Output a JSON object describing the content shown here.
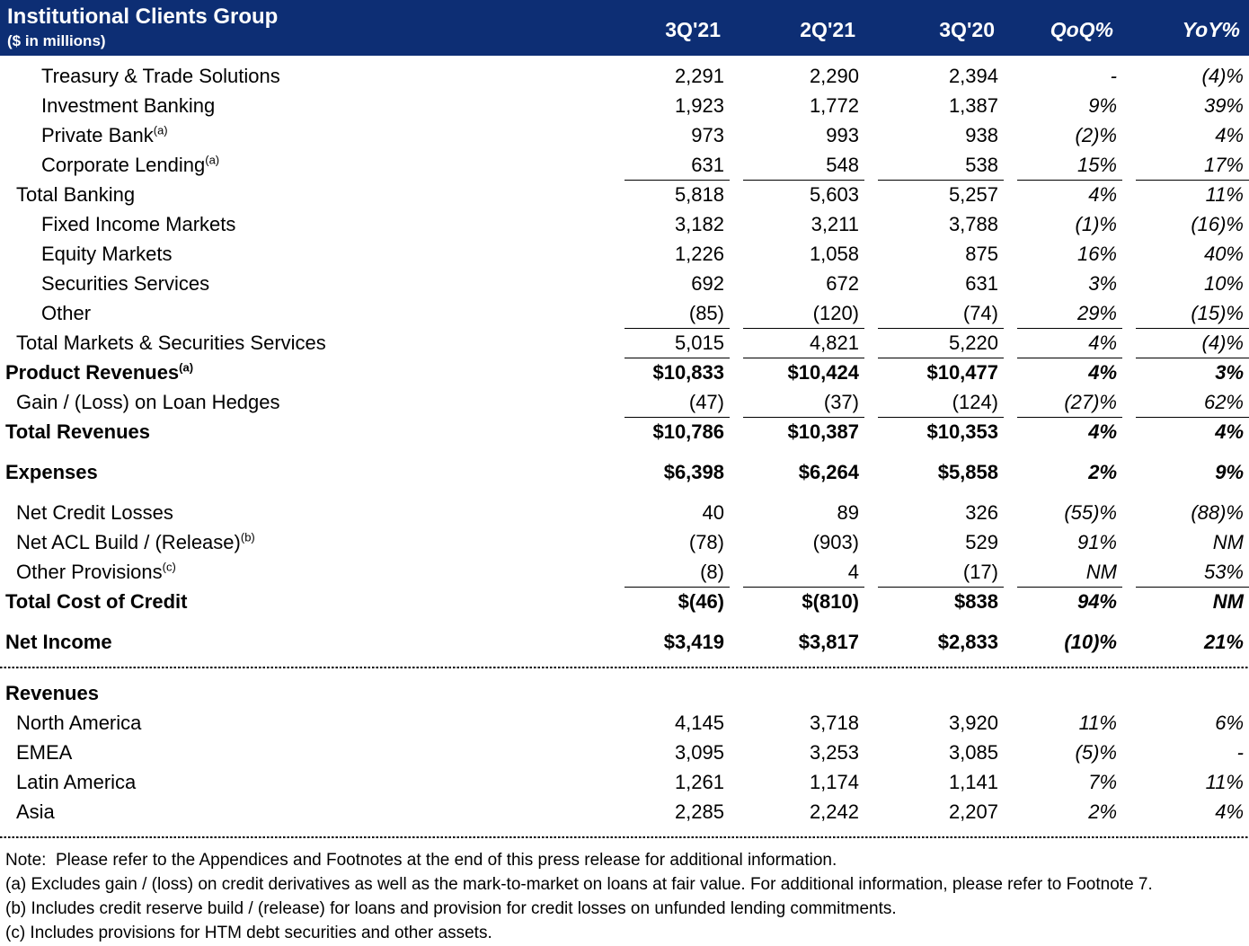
{
  "header": {
    "title": "Institutional Clients Group",
    "subtitle": "($ in millions)",
    "columns": [
      "3Q'21",
      "2Q'21",
      "3Q'20",
      "QoQ%",
      "YoY%"
    ],
    "background_color": "#0d2e74",
    "text_color": "#ffffff"
  },
  "table": {
    "rows": [
      {
        "label": "Treasury & Trade Solutions",
        "sup": "",
        "values": [
          "2,291",
          "2,290",
          "2,394",
          "-",
          "(4)%"
        ],
        "indent": 2,
        "bold": false,
        "underline": false,
        "gap": false
      },
      {
        "label": "Investment Banking",
        "sup": "",
        "values": [
          "1,923",
          "1,772",
          "1,387",
          "9%",
          "39%"
        ],
        "indent": 2,
        "bold": false,
        "underline": false,
        "gap": false
      },
      {
        "label": "Private Bank",
        "sup": "(a)",
        "values": [
          "973",
          "993",
          "938",
          "(2)%",
          "4%"
        ],
        "indent": 2,
        "bold": false,
        "underline": false,
        "gap": false
      },
      {
        "label": "Corporate Lending",
        "sup": "(a)",
        "values": [
          "631",
          "548",
          "538",
          "15%",
          "17%"
        ],
        "indent": 2,
        "bold": false,
        "underline": true,
        "gap": false
      },
      {
        "label": "Total Banking",
        "sup": "",
        "values": [
          "5,818",
          "5,603",
          "5,257",
          "4%",
          "11%"
        ],
        "indent": 1,
        "bold": false,
        "underline": false,
        "gap": false
      },
      {
        "label": "Fixed Income Markets",
        "sup": "",
        "values": [
          "3,182",
          "3,211",
          "3,788",
          "(1)%",
          "(16)%"
        ],
        "indent": 2,
        "bold": false,
        "underline": false,
        "gap": false
      },
      {
        "label": "Equity Markets",
        "sup": "",
        "values": [
          "1,226",
          "1,058",
          "875",
          "16%",
          "40%"
        ],
        "indent": 2,
        "bold": false,
        "underline": false,
        "gap": false
      },
      {
        "label": "Securities Services",
        "sup": "",
        "values": [
          "692",
          "672",
          "631",
          "3%",
          "10%"
        ],
        "indent": 2,
        "bold": false,
        "underline": false,
        "gap": false
      },
      {
        "label": "Other",
        "sup": "",
        "values": [
          "(85)",
          "(120)",
          "(74)",
          "29%",
          "(15)%"
        ],
        "indent": 2,
        "bold": false,
        "underline": true,
        "gap": false
      },
      {
        "label": "Total Markets & Securities Services",
        "sup": "",
        "values": [
          "5,015",
          "4,821",
          "5,220",
          "4%",
          "(4)%"
        ],
        "indent": 1,
        "bold": false,
        "underline": true,
        "gap": false
      },
      {
        "label": "Product Revenues",
        "sup": "(a)",
        "values": [
          "$10,833",
          "$10,424",
          "$10,477",
          "4%",
          "3%"
        ],
        "indent": 0,
        "bold": true,
        "underline": false,
        "gap": false
      },
      {
        "label": "Gain / (Loss) on Loan Hedges",
        "sup": "",
        "values": [
          "(47)",
          "(37)",
          "(124)",
          "(27)%",
          "62%"
        ],
        "indent": 1,
        "bold": false,
        "underline": true,
        "gap": false
      },
      {
        "label": "Total Revenues",
        "sup": "",
        "values": [
          "$10,786",
          "$10,387",
          "$10,353",
          "4%",
          "4%"
        ],
        "indent": 0,
        "bold": true,
        "underline": false,
        "gap": false
      },
      {
        "label": "Expenses",
        "sup": "",
        "values": [
          "$6,398",
          "$6,264",
          "$5,858",
          "2%",
          "9%"
        ],
        "indent": 0,
        "bold": true,
        "underline": false,
        "gap": true
      },
      {
        "label": "Net Credit Losses",
        "sup": "",
        "values": [
          "40",
          "89",
          "326",
          "(55)%",
          "(88)%"
        ],
        "indent": 1,
        "bold": false,
        "underline": false,
        "gap": true
      },
      {
        "label": "Net ACL Build / (Release)",
        "sup": "(b)",
        "values": [
          "(78)",
          "(903)",
          "529",
          "91%",
          "NM"
        ],
        "indent": 1,
        "bold": false,
        "underline": false,
        "gap": false
      },
      {
        "label": "Other Provisions",
        "sup": "(c)",
        "values": [
          "(8)",
          "4",
          "(17)",
          "NM",
          "53%"
        ],
        "indent": 1,
        "bold": false,
        "underline": true,
        "gap": false
      },
      {
        "label": "Total Cost of Credit",
        "sup": "",
        "values": [
          "$(46)",
          "$(810)",
          "$838",
          "94%",
          "NM"
        ],
        "indent": 0,
        "bold": true,
        "underline": false,
        "gap": false
      },
      {
        "label": "Net Income",
        "sup": "",
        "values": [
          "$3,419",
          "$3,817",
          "$2,833",
          "(10)%",
          "21%"
        ],
        "indent": 0,
        "bold": true,
        "underline": false,
        "gap": true
      },
      {
        "type": "separator"
      },
      {
        "label": "Revenues",
        "sup": "",
        "values": [
          "",
          "",
          "",
          "",
          ""
        ],
        "indent": 0,
        "bold": true,
        "underline": false,
        "gap": false
      },
      {
        "label": "North America",
        "sup": "",
        "values": [
          "4,145",
          "3,718",
          "3,920",
          "11%",
          "6%"
        ],
        "indent": 1,
        "bold": false,
        "underline": false,
        "gap": false
      },
      {
        "label": "EMEA",
        "sup": "",
        "values": [
          "3,095",
          "3,253",
          "3,085",
          "(5)%",
          "-"
        ],
        "indent": 1,
        "bold": false,
        "underline": false,
        "gap": false
      },
      {
        "label": "Latin America",
        "sup": "",
        "values": [
          "1,261",
          "1,174",
          "1,141",
          "7%",
          "11%"
        ],
        "indent": 1,
        "bold": false,
        "underline": false,
        "gap": false
      },
      {
        "label": "Asia",
        "sup": "",
        "values": [
          "2,285",
          "2,242",
          "2,207",
          "2%",
          "4%"
        ],
        "indent": 1,
        "bold": false,
        "underline": false,
        "gap": false
      },
      {
        "type": "separator"
      }
    ]
  },
  "footnotes": [
    "Note:  Please refer to the Appendices and Footnotes at the end of this press release for additional information.",
    "(a) Excludes gain / (loss) on credit derivatives as well as the mark-to-market on loans at fair value. For additional information, please refer to Footnote 7.",
    "(b) Includes credit reserve build / (release) for loans and provision for credit losses on unfunded lending commitments.",
    "(c) Includes provisions for HTM debt securities and other assets."
  ]
}
